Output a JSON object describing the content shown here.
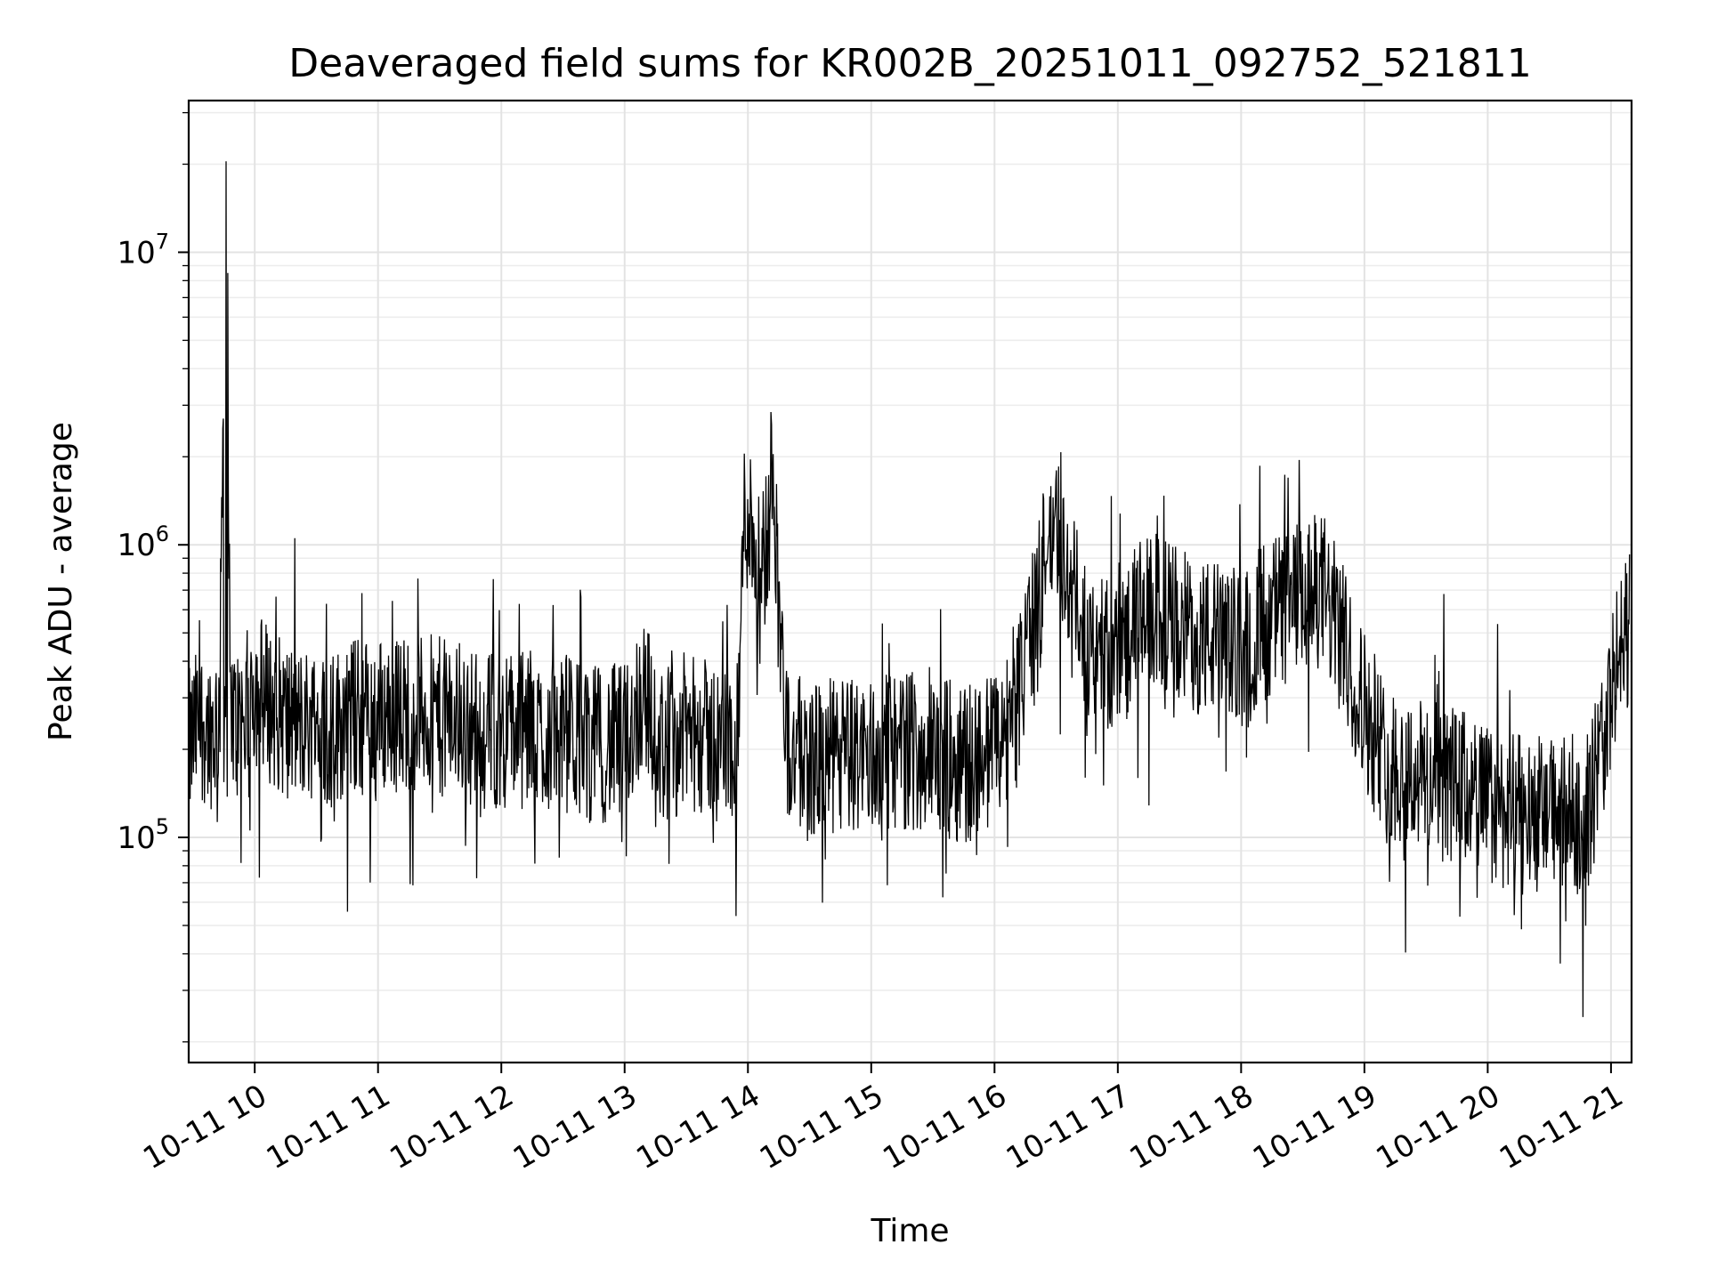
{
  "chart_data": {
    "type": "line",
    "title": "Deaveraged field sums for KR002B_20251011_092752_521811",
    "xlabel": "Time",
    "ylabel": "Peak ADU - average",
    "yscale": "log",
    "ylim": [
      17000,
      33000000
    ],
    "xlim": [
      "2025-10-11T09:27:52",
      "2025-10-11T21:10:00"
    ],
    "grid": true,
    "legend": "none",
    "x_ticks": [
      "2025-10-11T10:00",
      "2025-10-11T11:00",
      "2025-10-11T12:00",
      "2025-10-11T13:00",
      "2025-10-11T14:00",
      "2025-10-11T15:00",
      "2025-10-11T16:00",
      "2025-10-11T17:00",
      "2025-10-11T18:00",
      "2025-10-11T19:00",
      "2025-10-11T20:00",
      "2025-10-11T21:00"
    ],
    "x_tick_labels": [
      "10-11 10",
      "10-11 11",
      "10-11 12",
      "10-11 13",
      "10-11 14",
      "10-11 15",
      "10-11 16",
      "10-11 17",
      "10-11 18",
      "10-11 19",
      "10-11 20",
      "10-11 21"
    ],
    "y_ticks": [
      100000,
      1000000,
      10000000
    ],
    "y_tick_labels": [
      {
        "base": "10",
        "exp": "5"
      },
      {
        "base": "10",
        "exp": "6"
      },
      {
        "base": "10",
        "exp": "7"
      }
    ],
    "series": [
      {
        "color": "#000000",
        "x": [
          "2025-10-11T09:28",
          "2025-10-11T09:33",
          "2025-10-11T09:40",
          "2025-10-11T09:43",
          "2025-10-11T09:46",
          "2025-10-11T09:48",
          "2025-10-11T09:51",
          "2025-10-11T09:55",
          "2025-10-11T10:00",
          "2025-10-11T10:05",
          "2025-10-11T10:10",
          "2025-10-11T10:20",
          "2025-10-11T10:30",
          "2025-10-11T10:37",
          "2025-10-11T10:45",
          "2025-10-11T11:00",
          "2025-10-11T11:15",
          "2025-10-11T11:30",
          "2025-10-11T11:45",
          "2025-10-11T12:00",
          "2025-10-11T12:04",
          "2025-10-11T12:15",
          "2025-10-11T12:30",
          "2025-10-11T12:45",
          "2025-10-11T13:00",
          "2025-10-11T13:10",
          "2025-10-11T13:15",
          "2025-10-11T13:30",
          "2025-10-11T13:45",
          "2025-10-11T13:55",
          "2025-10-11T13:58",
          "2025-10-11T14:00",
          "2025-10-11T14:05",
          "2025-10-11T14:10",
          "2025-10-11T14:12",
          "2025-10-11T14:14",
          "2025-10-11T14:18",
          "2025-10-11T14:20",
          "2025-10-11T14:30",
          "2025-10-11T14:45",
          "2025-10-11T15:00",
          "2025-10-11T15:15",
          "2025-10-11T15:30",
          "2025-10-11T15:45",
          "2025-10-11T16:00",
          "2025-10-11T16:10",
          "2025-10-11T16:15",
          "2025-10-11T16:20",
          "2025-10-11T16:25",
          "2025-10-11T16:30",
          "2025-10-11T16:40",
          "2025-10-11T16:50",
          "2025-10-11T17:00",
          "2025-10-11T17:10",
          "2025-10-11T17:20",
          "2025-10-11T17:30",
          "2025-10-11T17:45",
          "2025-10-11T18:00",
          "2025-10-11T18:10",
          "2025-10-11T18:20",
          "2025-10-11T18:30",
          "2025-10-11T18:40",
          "2025-10-11T18:50",
          "2025-10-11T19:00",
          "2025-10-11T19:10",
          "2025-10-11T19:20",
          "2025-10-11T19:30",
          "2025-10-11T19:45",
          "2025-10-11T19:55",
          "2025-10-11T20:00",
          "2025-10-11T20:15",
          "2025-10-11T20:30",
          "2025-10-11T20:45",
          "2025-10-11T20:50",
          "2025-10-11T21:00",
          "2025-10-11T21:05",
          "2025-10-11T21:09"
        ],
        "y": [
          200000,
          250000,
          230000,
          280000,
          24000000,
          270000,
          240000,
          260000,
          330000,
          300000,
          270000,
          240000,
          250000,
          230000,
          260000,
          260000,
          270000,
          260000,
          240000,
          230000,
          240000,
          220000,
          230000,
          210000,
          210000,
          330000,
          200000,
          230000,
          210000,
          210000,
          1200000,
          1300000,
          900000,
          1000000,
          2500000,
          900000,
          250000,
          200000,
          180000,
          190000,
          190000,
          200000,
          190000,
          180000,
          200000,
          260000,
          400000,
          550000,
          900000,
          1200000,
          600000,
          420000,
          420000,
          550000,
          600000,
          520000,
          480000,
          440000,
          550000,
          600000,
          650000,
          700000,
          450000,
          280000,
          180000,
          170000,
          160000,
          150000,
          140000,
          130000,
          120000,
          120000,
          120000,
          130000,
          300000,
          450000,
          550000
        ]
      }
    ]
  }
}
